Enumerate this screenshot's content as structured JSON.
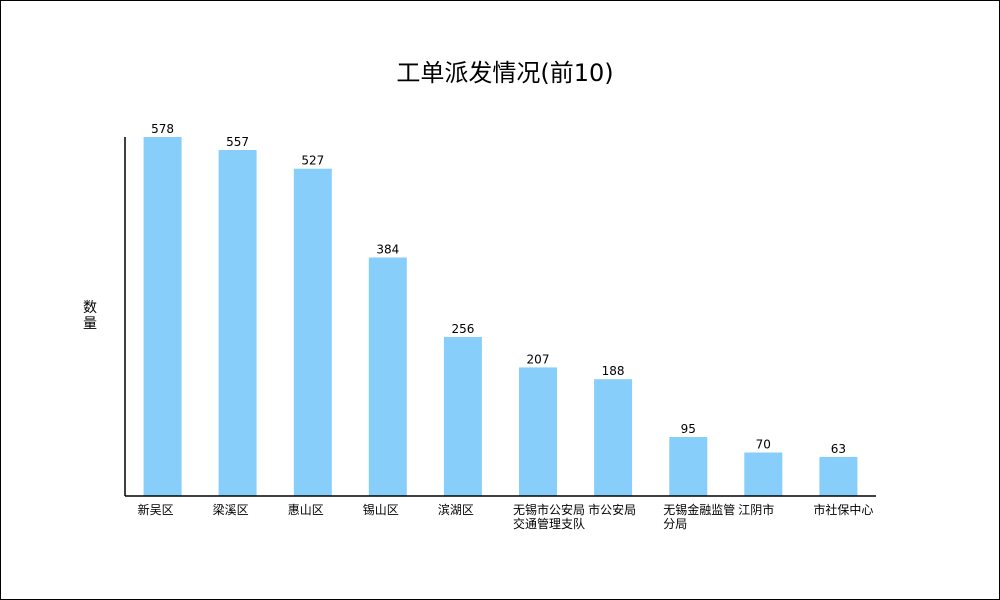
{
  "chart_data": {
    "type": "bar",
    "title": "工单派发情况(前10)",
    "xlabel": "",
    "ylabel": "数量",
    "categories": [
      "新吴区",
      "梁溪区",
      "惠山区",
      "锡山区",
      "滨湖区",
      "无锡市公安局交通管理支队",
      "市公安局",
      "无锡金融监管分局",
      "江阴市",
      "市社保中心"
    ],
    "values": [
      578,
      557,
      527,
      384,
      256,
      207,
      188,
      95,
      70,
      63
    ],
    "ylim": [
      0,
      600
    ],
    "grid": false,
    "legend": "none",
    "colors": {
      "bar": "#87CEFA",
      "axis": "#000000",
      "text": "#000000"
    }
  }
}
